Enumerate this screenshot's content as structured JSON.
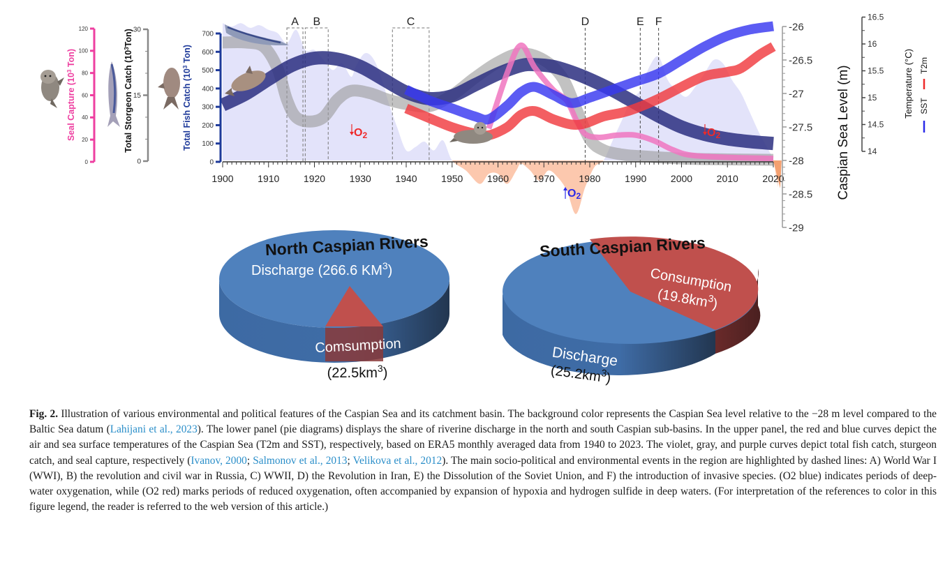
{
  "chart_data": [
    {
      "type": "line",
      "panel": "upper",
      "xlabel": "",
      "x_ticks": [
        1900,
        1910,
        1920,
        1930,
        1940,
        1950,
        1960,
        1970,
        1980,
        1990,
        2000,
        2010,
        2020
      ],
      "xlim": [
        1900,
        2020
      ],
      "axes": {
        "seal": {
          "label": "Seal Capture (10³ Ton)",
          "ticks": [
            0,
            20,
            40,
            60,
            80,
            100,
            120
          ],
          "lim": [
            0,
            120
          ],
          "color": "#ee3fa0"
        },
        "sturgeon": {
          "label": "Total Storgeon Catch (10³Ton)",
          "ticks": [
            0,
            15,
            30
          ],
          "lim": [
            0,
            30
          ],
          "color": "#7a7a7a"
        },
        "fish": {
          "label": "Total Fish Catch (10³ Ton)",
          "ticks": [
            0,
            100,
            200,
            300,
            400,
            500,
            600,
            700
          ],
          "lim": [
            0,
            700
          ],
          "color": "#1e3a9a"
        },
        "sea_level": {
          "label": "Caspian Sea Level (m)",
          "ticks": [
            -26,
            -26.5,
            -27,
            -27.5,
            -28,
            -28.5,
            -29
          ],
          "lim": [
            -29,
            -26
          ],
          "color": "#999999"
        },
        "temperature": {
          "label": "Temperature (°C)",
          "ticks": [
            16.5,
            16,
            15.5,
            15,
            14.5,
            14
          ],
          "lim": [
            13.7,
            16.5
          ],
          "color": "#555555"
        }
      },
      "legend": {
        "position": "right",
        "items": [
          {
            "name": "SST",
            "color": "#2a2ae8"
          },
          {
            "name": "T2m",
            "color": "#ee2a2a"
          }
        ]
      },
      "series": [
        {
          "name": "Total fish catch",
          "axis": "fish",
          "color": "#2b2f80",
          "x": [
            1900,
            1905,
            1910,
            1915,
            1920,
            1925,
            1930,
            1935,
            1940,
            1945,
            1950,
            1955,
            1960,
            1965,
            1968,
            1972,
            1976,
            1980,
            1985,
            1990,
            1995,
            2000,
            2005,
            2010,
            2015,
            2020
          ],
          "values": [
            310,
            370,
            450,
            525,
            565,
            560,
            520,
            450,
            380,
            345,
            360,
            420,
            480,
            525,
            530,
            520,
            490,
            450,
            390,
            320,
            250,
            190,
            150,
            125,
            110,
            100
          ]
        },
        {
          "name": "Sturgeon catch",
          "axis": "sturgeon",
          "color": "#9a9a9a",
          "x": [
            1900,
            1905,
            1909,
            1912,
            1914,
            1916,
            1919,
            1922,
            1925,
            1928,
            1932,
            1936,
            1940,
            1945,
            1950,
            1955,
            1960,
            1965,
            1970,
            1974,
            1977,
            1980,
            1983,
            1987,
            1990,
            2000,
            2010,
            2020
          ],
          "values": [
            27,
            27,
            26,
            21,
            14,
            10,
            9,
            10,
            14,
            16,
            15.5,
            14,
            13,
            12.5,
            15,
            19,
            22.5,
            24.5,
            23,
            19,
            12,
            5,
            2.5,
            1.5,
            1.2,
            0.6,
            0.4,
            0.3
          ]
        },
        {
          "name": "Seal capture",
          "axis": "seal",
          "color": "#f075c0",
          "x": [
            1958,
            1962,
            1965,
            1968,
            1972,
            1975,
            1977,
            1979,
            1982,
            1986,
            1990,
            1994,
            1998,
            2002,
            2010,
            2020
          ],
          "values": [
            30,
            80,
            105,
            85,
            65,
            55,
            38,
            25,
            22,
            24,
            24,
            19,
            11,
            6,
            4,
            3
          ]
        },
        {
          "name": "SST",
          "axis": "temperature",
          "color": "#3838f0",
          "x": [
            1940,
            1945,
            1950,
            1955,
            1958,
            1962,
            1965,
            1968,
            1972,
            1976,
            1980,
            1985,
            1990,
            1995,
            2000,
            2005,
            2010,
            2015,
            2020
          ],
          "values": [
            15.15,
            14.95,
            14.8,
            14.65,
            14.6,
            14.85,
            15.1,
            15.2,
            15.05,
            14.9,
            15.0,
            15.15,
            15.3,
            15.45,
            15.7,
            15.95,
            16.15,
            16.27,
            16.33
          ]
        },
        {
          "name": "T2m",
          "axis": "temperature",
          "color": "#f03a40",
          "x": [
            1940,
            1945,
            1950,
            1955,
            1958,
            1962,
            1965,
            1968,
            1972,
            1976,
            1979,
            1983,
            1987,
            1990,
            1995,
            2000,
            2005,
            2010,
            2013,
            2017,
            2020
          ],
          "values": [
            14.8,
            14.62,
            14.45,
            14.33,
            14.3,
            14.45,
            14.68,
            14.75,
            14.6,
            14.5,
            14.52,
            14.65,
            14.72,
            14.8,
            14.98,
            15.2,
            15.4,
            15.48,
            15.55,
            15.8,
            15.95
          ]
        },
        {
          "name": "Caspian sea level",
          "axis": "sea_level",
          "type": "area",
          "baseline": -28,
          "color_above": "#e3e3fa",
          "color_below": "#fcc8ae",
          "x": [
            1900,
            1902,
            1904,
            1906,
            1908,
            1910,
            1912,
            1914,
            1916,
            1918,
            1920,
            1922,
            1924,
            1926,
            1928,
            1929,
            1931,
            1933,
            1935,
            1936,
            1938,
            1940,
            1942,
            1944,
            1946,
            1948,
            1950,
            1953,
            1956,
            1958,
            1960,
            1962,
            1964,
            1965,
            1967,
            1969,
            1971,
            1973,
            1975,
            1977,
            1979,
            1981,
            1983,
            1985,
            1987,
            1989,
            1991,
            1993,
            1995,
            1997,
            1999,
            2001,
            2003,
            2005,
            2007,
            2009,
            2011,
            2013,
            2015,
            2017,
            2019,
            2020,
            2021
          ],
          "values": [
            -25.95,
            -26.0,
            -25.95,
            -26.02,
            -25.98,
            -26.05,
            -26.1,
            -26.25,
            -26.05,
            -26.35,
            -26.35,
            -26.5,
            -26.65,
            -26.55,
            -26.75,
            -26.6,
            -26.4,
            -26.5,
            -26.85,
            -27.1,
            -27.5,
            -27.85,
            -27.8,
            -27.72,
            -27.85,
            -27.7,
            -28.0,
            -28.15,
            -28.35,
            -28.2,
            -28.2,
            -28.35,
            -28.15,
            -28.05,
            -28.15,
            -28.3,
            -28.15,
            -28.25,
            -28.45,
            -28.8,
            -28.4,
            -28.1,
            -28.0,
            -27.7,
            -27.4,
            -27.1,
            -26.95,
            -26.6,
            -26.45,
            -26.8,
            -26.95,
            -27.05,
            -26.9,
            -26.7,
            -26.5,
            -26.55,
            -26.8,
            -27.0,
            -27.3,
            -27.6,
            -27.85,
            -28.0,
            -28.4
          ]
        }
      ],
      "events": [
        {
          "label": "A",
          "start": 1914,
          "end": 1917.5,
          "style": "dashed-box"
        },
        {
          "label": "B",
          "start": 1918,
          "end": 1923,
          "style": "dashed-box"
        },
        {
          "label": "C",
          "start": 1937,
          "end": 1945,
          "style": "dashed-box"
        },
        {
          "label": "D",
          "at": 1979,
          "style": "dashed-line"
        },
        {
          "label": "E",
          "at": 1991,
          "style": "dashed-line"
        },
        {
          "label": "F",
          "at": 1995,
          "style": "dashed-line"
        }
      ],
      "annotations": [
        {
          "text": "O2",
          "arrow": "down",
          "color": "#ee2a2a",
          "x": 1929,
          "y_level": -27.35
        },
        {
          "text": "O2",
          "arrow": "up",
          "color": "#2a2ae8",
          "x": 1976,
          "y_level": -28.45
        },
        {
          "text": "O2",
          "arrow": "down",
          "color": "#ee2a2a",
          "x": 2006,
          "y_level": -27.35
        }
      ]
    },
    {
      "type": "pie",
      "title": "North Caspian Rivers",
      "slices": [
        {
          "label": "Discharge",
          "value": 266.6,
          "unit": "KM³",
          "display": "Discharge (266.6 KM³)",
          "color": "#4a7fbd"
        },
        {
          "label": "Comsumption",
          "value": 22.5,
          "unit": "km³",
          "display": "(22.5km³)",
          "color": "#c0504d"
        }
      ]
    },
    {
      "type": "pie",
      "title": "South Caspian Rivers",
      "slices": [
        {
          "label": "Discharge",
          "value": 25.2,
          "unit": "km3",
          "display": "(25.2km3)",
          "color": "#4a7fbd"
        },
        {
          "label": "Consumption",
          "value": 19.8,
          "unit": "km3",
          "display": "(19.8km3)",
          "color": "#c0504d"
        }
      ]
    }
  ],
  "labels": {
    "seal_axis": "Seal Capture (10",
    "seal_axis_tail": " Ton)",
    "sturgeon_axis": "Total Storgeon Catch (10",
    "sturgeon_axis_tail": "Ton)",
    "fish_axis": "Total Fish Catch (10",
    "fish_axis_tail": " Ton)",
    "sup3": "3",
    "sea_level_axis": "Caspian Sea Level (m)",
    "temperature_axis": "Temperature (°C)",
    "legend_sst": "SST",
    "legend_t2m": "T2m",
    "o2": "O",
    "o2_sub": "2",
    "north_title": "North Caspian Rivers",
    "north_discharge": "Discharge (266.6 KM",
    "north_discharge_tail": ")",
    "north_consumption": "Comsumption",
    "north_consumption_val": "(22.5km",
    "north_consumption_tail": ")",
    "south_title": "South Caspian Rivers",
    "south_consumption": "Consumption",
    "south_consumption_val": "(19.8km",
    "south_consumption_tail": ")",
    "south_discharge": "Discharge",
    "south_discharge_val": "(25.2km",
    "south_discharge_tail": ")"
  },
  "caption": {
    "fig_label": "Fig. 2.",
    "segments": [
      {
        "t": "  Illustration of various environmental and political features of the Caspian Sea and its catchment basin. The background color represents the Caspian Sea level relative to the −28 m level compared to the Baltic Sea datum ("
      },
      {
        "t": "Lahijani et al., 2023",
        "ref": true
      },
      {
        "t": "). The lower panel (pie diagrams) displays the share of riverine discharge in the north and south Caspian sub-basins. In the upper panel, the red and blue curves depict the air and sea surface temperatures of the Caspian Sea (T2m and SST), respectively, based on ERA5 monthly averaged data from 1940 to 2023. The violet, gray, and purple curves depict total fish catch, sturgeon catch, and seal capture, respectively ("
      },
      {
        "t": "Ivanov, 2000",
        "ref": true
      },
      {
        "t": "; "
      },
      {
        "t": "Salmonov et al., 2013",
        "ref": true
      },
      {
        "t": "; "
      },
      {
        "t": "Velikova et al., 2012",
        "ref": true
      },
      {
        "t": "). The main socio-political and environmental events in the region are highlighted by dashed lines: A) World War I (WWI), B) the revolution and civil war in Russia, C) WWII, D) the Revolution in Iran, E) the Dissolution of the Soviet Union, and F) the introduction of invasive species. (O2 blue) indicates periods of deep-water oxygenation, while (O2 red) marks periods of reduced oxygenation, often accompanied by expansion of hypoxia and hydrogen sulfide in deep waters. (For interpretation of the references to color in this figure legend, the reader is referred to the web version of this article.)"
      }
    ]
  }
}
